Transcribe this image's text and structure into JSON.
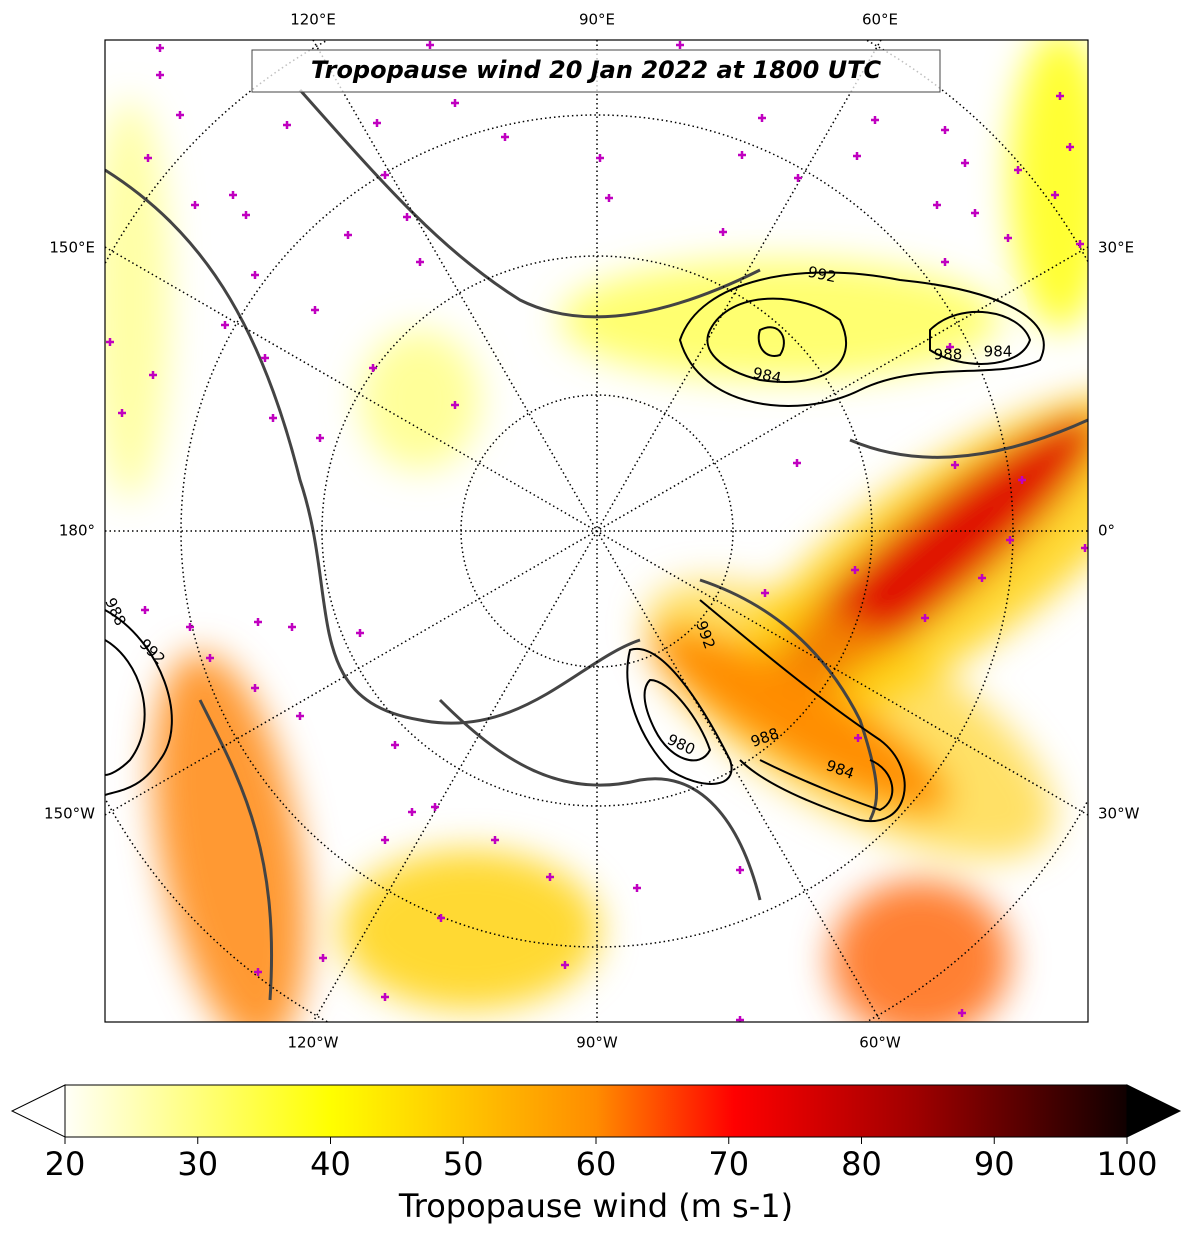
{
  "title": "Tropopause wind 20 Jan 2022 at 1800 UTC",
  "map": {
    "lon_labels_top": [
      "120°E",
      "90°E",
      "60°E"
    ],
    "lon_labels_bottom": [
      "120°W",
      "90°W",
      "60°W"
    ],
    "lon_labels_left": [
      "150°E",
      "180°",
      "150°W"
    ],
    "lon_labels_right": [
      "30°E",
      "0°",
      "30°W"
    ],
    "contour_labels": [
      "992",
      "984",
      "988",
      "984",
      "988",
      "992",
      "992",
      "980",
      "988",
      "984"
    ]
  },
  "colorbar": {
    "label": "Tropopause wind (m s-1)",
    "range": [
      20,
      100
    ],
    "ticks": [
      20,
      30,
      40,
      50,
      60,
      70,
      80,
      90,
      100
    ]
  }
}
